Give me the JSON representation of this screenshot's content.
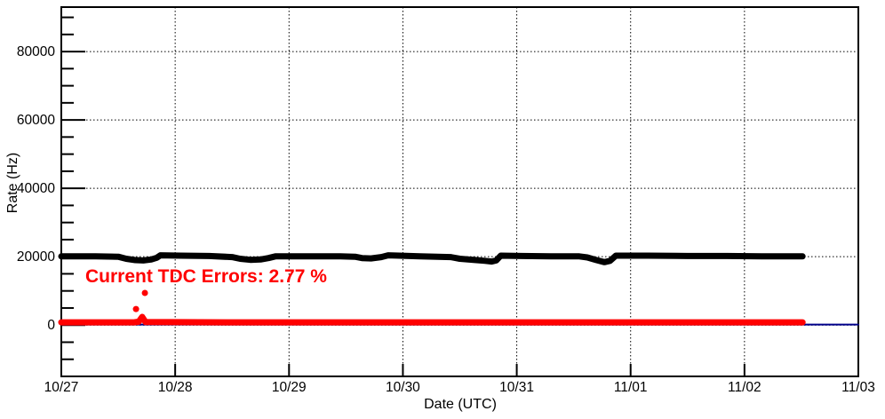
{
  "chart_data": {
    "type": "line",
    "title": "",
    "xlabel": "Date (UTC)",
    "ylabel": "Rate (Hz)",
    "x_unit_days_since": "10/27 00:00 UTC",
    "xlim_days": [
      0,
      7
    ],
    "ylim": [
      -15000,
      93000
    ],
    "grid": "dotted-at-major-ticks",
    "legend_position": "none",
    "x_ticks": [
      {
        "x": 0,
        "label": "10/27"
      },
      {
        "x": 1,
        "label": "10/28"
      },
      {
        "x": 2,
        "label": "10/29"
      },
      {
        "x": 3,
        "label": "10/30"
      },
      {
        "x": 4,
        "label": "10/31"
      },
      {
        "x": 5,
        "label": "11/01"
      },
      {
        "x": 6,
        "label": "11/02"
      },
      {
        "x": 7,
        "label": "11/03"
      }
    ],
    "x_gridline_days": [
      1,
      2,
      3,
      4,
      5,
      6
    ],
    "y_ticks": [
      {
        "v": 0,
        "label": "0"
      },
      {
        "v": 20000,
        "label": "20000"
      },
      {
        "v": 40000,
        "label": "40000"
      },
      {
        "v": 60000,
        "label": "60000"
      },
      {
        "v": 80000,
        "label": "80000"
      }
    ],
    "y_minor_tick_step": 5000,
    "annotation": {
      "text": "Current TDC Errors: 2.77 %",
      "color": "#ff0000"
    },
    "colors": {
      "frame": "#000000",
      "grid": "#000000",
      "background": "#ffffff"
    },
    "series": [
      {
        "name": "zero-line",
        "style": "line",
        "stroke_width": 2,
        "color": "#00008b",
        "points": [
          [
            0,
            150
          ],
          [
            7,
            150
          ]
        ]
      },
      {
        "name": "signal-rate",
        "style": "thick-marker-line",
        "stroke_width": 7,
        "color": "#000000",
        "points": [
          [
            0.0,
            20100
          ],
          [
            0.3,
            20100
          ],
          [
            0.5,
            20000
          ],
          [
            0.57,
            19400
          ],
          [
            0.65,
            19000
          ],
          [
            0.72,
            18900
          ],
          [
            0.79,
            19200
          ],
          [
            0.84,
            19700
          ],
          [
            0.87,
            20400
          ],
          [
            1.05,
            20300
          ],
          [
            1.3,
            20200
          ],
          [
            1.5,
            19900
          ],
          [
            1.57,
            19400
          ],
          [
            1.66,
            19100
          ],
          [
            1.75,
            19200
          ],
          [
            1.82,
            19600
          ],
          [
            1.88,
            20100
          ],
          [
            2.15,
            20100
          ],
          [
            2.45,
            20100
          ],
          [
            2.58,
            20000
          ],
          [
            2.64,
            19600
          ],
          [
            2.72,
            19500
          ],
          [
            2.81,
            19900
          ],
          [
            2.87,
            20400
          ],
          [
            2.97,
            20300
          ],
          [
            3.15,
            20100
          ],
          [
            3.42,
            19900
          ],
          [
            3.5,
            19400
          ],
          [
            3.62,
            19100
          ],
          [
            3.72,
            18800
          ],
          [
            3.78,
            18600
          ],
          [
            3.82,
            18900
          ],
          [
            3.86,
            20300
          ],
          [
            4.05,
            20200
          ],
          [
            4.3,
            20100
          ],
          [
            4.55,
            20100
          ],
          [
            4.62,
            19800
          ],
          [
            4.7,
            19000
          ],
          [
            4.77,
            18400
          ],
          [
            4.82,
            18800
          ],
          [
            4.87,
            20300
          ],
          [
            5.15,
            20300
          ],
          [
            5.5,
            20200
          ],
          [
            5.85,
            20200
          ],
          [
            6.15,
            20100
          ],
          [
            6.4,
            20100
          ],
          [
            6.51,
            20100
          ]
        ]
      },
      {
        "name": "tdc-error-rate",
        "style": "thick-marker-line",
        "stroke_width": 7,
        "color": "#ff0000",
        "points": [
          [
            0.0,
            800
          ],
          [
            0.64,
            800
          ],
          [
            0.68,
            1000
          ],
          [
            0.71,
            2400
          ],
          [
            0.74,
            900
          ],
          [
            1.5,
            800
          ],
          [
            3.0,
            800
          ],
          [
            4.5,
            800
          ],
          [
            6.51,
            800
          ]
        ],
        "outlier_points": [
          [
            0.656,
            4700
          ],
          [
            0.734,
            9400
          ]
        ]
      }
    ]
  }
}
